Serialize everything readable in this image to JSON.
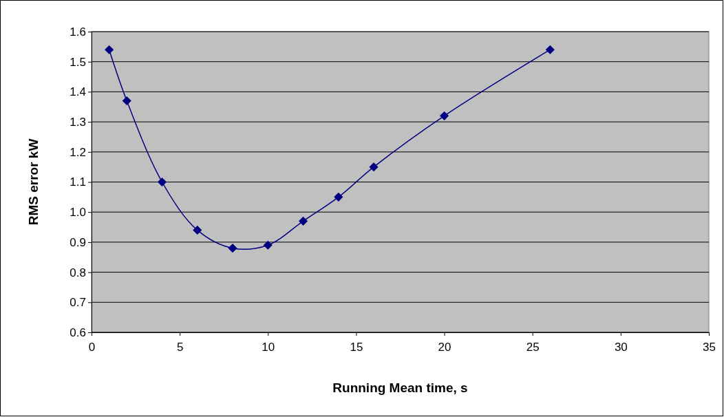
{
  "chart_data": {
    "type": "line",
    "xlabel": "Running Mean time, s",
    "ylabel": "RMS error kW",
    "x": [
      1,
      2,
      4,
      6,
      8,
      10,
      12,
      14,
      16,
      20,
      26
    ],
    "series": [
      {
        "color": "#000080",
        "values": [
          1.54,
          1.37,
          1.1,
          0.94,
          0.88,
          0.89,
          0.97,
          1.05,
          1.15,
          1.32,
          1.54
        ]
      }
    ],
    "xlim": [
      0,
      35
    ],
    "xticks": [
      0,
      5,
      10,
      15,
      20,
      25,
      30,
      35
    ],
    "ylim": [
      0.6,
      1.6
    ],
    "yticks": [
      {
        "value": 0.6,
        "label": "0.6"
      },
      {
        "value": 0.7,
        "label": "0.7"
      },
      {
        "value": 0.8,
        "label": "0.8"
      },
      {
        "value": 0.9,
        "label": "0.9"
      },
      {
        "value": 1.0,
        "label": "1.0"
      },
      {
        "value": 1.1,
        "label": "1.1"
      },
      {
        "value": 1.2,
        "label": "1.2"
      },
      {
        "value": 1.3,
        "label": "1.3"
      },
      {
        "value": 1.4,
        "label": "1.4"
      },
      {
        "value": 1.5,
        "label": "1.5"
      },
      {
        "value": 1.6,
        "label": "1.6"
      }
    ],
    "grid": "y",
    "marker": "diamond"
  }
}
